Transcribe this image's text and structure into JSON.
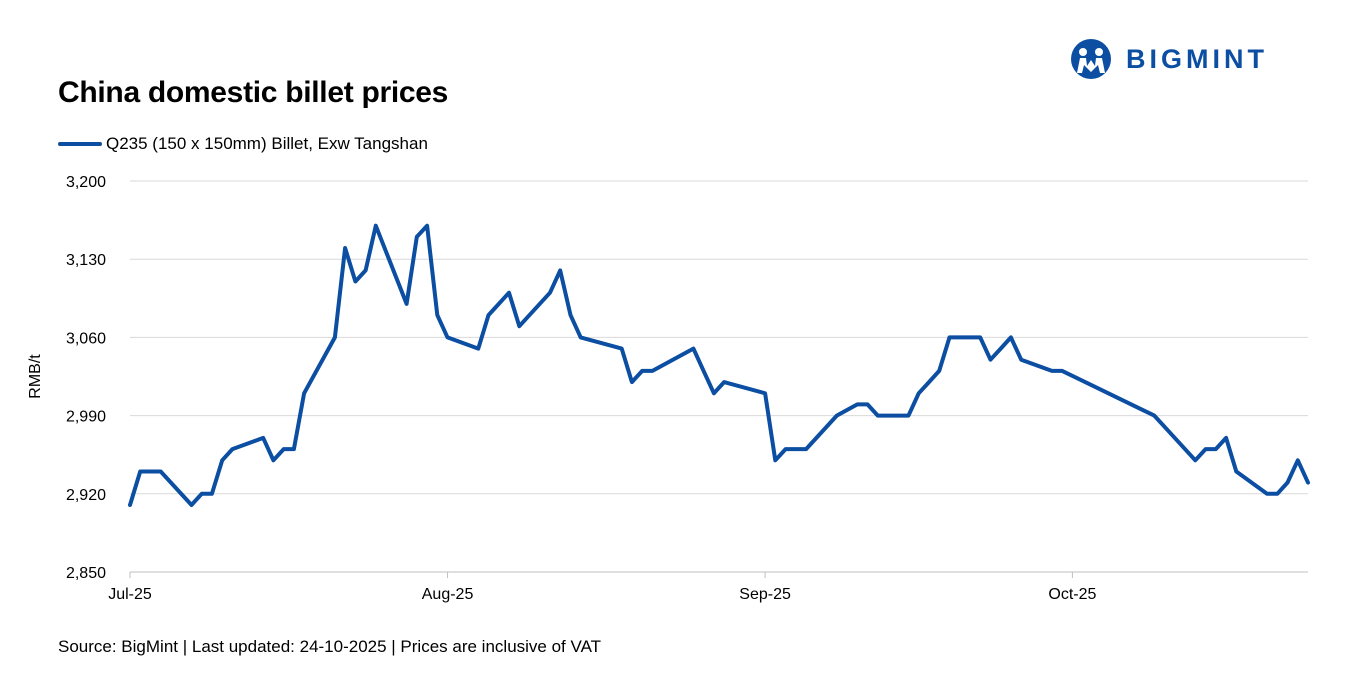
{
  "title": "China domestic billet prices",
  "footer": "Source: BigMint | Last updated: 24-10-2025 | Prices are inclusive of VAT",
  "logo": {
    "text": "BIGMINT",
    "icon": "bigmint-people-icon",
    "color": "#0B4EA2"
  },
  "colors": {
    "series": "#0B4EA2",
    "grid": "#d9d9d9",
    "axis": "#bfbfbf"
  },
  "chart_data": {
    "type": "line",
    "title": "China domestic billet prices",
    "ylabel": "RMB/t",
    "xlabel": "",
    "ylim": [
      2850,
      3200
    ],
    "y_ticks": [
      "2,850",
      "2,920",
      "2,990",
      "3,060",
      "3,130",
      "3,200"
    ],
    "y_tick_values": [
      2850,
      2920,
      2990,
      3060,
      3130,
      3200
    ],
    "x_ticks": [
      "Jul-25",
      "Aug-25",
      "Sep-25",
      "Oct-25"
    ],
    "x_tick_dates": [
      "2025-07-01",
      "2025-08-01",
      "2025-09-01",
      "2025-10-01"
    ],
    "xlim": [
      "2025-07-01",
      "2025-10-24"
    ],
    "grid": "horizontal",
    "legend_position": "top-left",
    "series": [
      {
        "name": "Q235 (150 x 150mm) Billet, Exw Tangshan",
        "color": "#0B4EA2",
        "x": [
          "2025-07-01",
          "2025-07-02",
          "2025-07-03",
          "2025-07-04",
          "2025-07-07",
          "2025-07-08",
          "2025-07-09",
          "2025-07-10",
          "2025-07-11",
          "2025-07-14",
          "2025-07-15",
          "2025-07-16",
          "2025-07-17",
          "2025-07-18",
          "2025-07-21",
          "2025-07-22",
          "2025-07-23",
          "2025-07-24",
          "2025-07-25",
          "2025-07-28",
          "2025-07-29",
          "2025-07-30",
          "2025-07-31",
          "2025-08-01",
          "2025-08-04",
          "2025-08-05",
          "2025-08-06",
          "2025-08-07",
          "2025-08-08",
          "2025-08-11",
          "2025-08-12",
          "2025-08-13",
          "2025-08-14",
          "2025-08-18",
          "2025-08-19",
          "2025-08-20",
          "2025-08-21",
          "2025-08-25",
          "2025-08-26",
          "2025-08-27",
          "2025-08-28",
          "2025-09-01",
          "2025-09-02",
          "2025-09-03",
          "2025-09-04",
          "2025-09-05",
          "2025-09-08",
          "2025-09-09",
          "2025-09-10",
          "2025-09-11",
          "2025-09-12",
          "2025-09-15",
          "2025-09-16",
          "2025-09-17",
          "2025-09-18",
          "2025-09-19",
          "2025-09-22",
          "2025-09-23",
          "2025-09-24",
          "2025-09-25",
          "2025-09-26",
          "2025-09-29",
          "2025-09-30",
          "2025-10-09",
          "2025-10-10",
          "2025-10-13",
          "2025-10-14",
          "2025-10-15",
          "2025-10-16",
          "2025-10-17",
          "2025-10-20",
          "2025-10-21",
          "2025-10-22",
          "2025-10-23",
          "2025-10-24"
        ],
        "values": [
          2910,
          2940,
          2940,
          2940,
          2910,
          2920,
          2920,
          2950,
          2960,
          2970,
          2950,
          2960,
          2960,
          3010,
          3060,
          3140,
          3110,
          3120,
          3160,
          3090,
          3150,
          3160,
          3080,
          3060,
          3050,
          3080,
          3090,
          3100,
          3070,
          3100,
          3120,
          3080,
          3060,
          3050,
          3020,
          3030,
          3030,
          3050,
          3030,
          3010,
          3020,
          3010,
          2950,
          2960,
          2960,
          2960,
          2990,
          2995,
          3000,
          3000,
          2990,
          2990,
          3010,
          3020,
          3030,
          3060,
          3060,
          3040,
          3050,
          3060,
          3040,
          3030,
          3030,
          2990,
          2980,
          2950,
          2960,
          2960,
          2970,
          2940,
          2920,
          2920,
          2930,
          2950,
          2930
        ]
      }
    ]
  }
}
